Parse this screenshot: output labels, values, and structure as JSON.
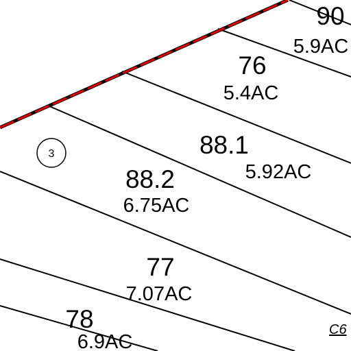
{
  "map": {
    "parcels": [
      {
        "number": "90",
        "area": "5.9AC"
      },
      {
        "number": "76",
        "area": "5.4AC"
      },
      {
        "number": "88.1",
        "area": "5.92AC"
      },
      {
        "number": "88.2",
        "area": "6.75AC"
      },
      {
        "number": "77",
        "area": "7.07AC"
      },
      {
        "number": "78",
        "area": "6.9AC"
      }
    ],
    "circle_label": "3",
    "corner_label": "C6"
  }
}
